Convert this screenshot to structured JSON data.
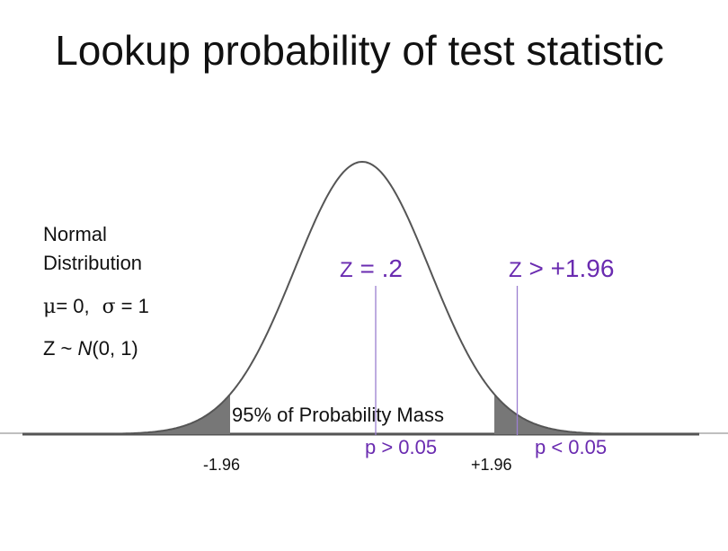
{
  "title": "Lookup probability of test statistic",
  "left_panel": {
    "line1": "Normal",
    "line2": "Distribution",
    "params_mu": "= 0,",
    "params_sigma": "= 1",
    "mu_symbol": "μ",
    "sigma_symbol": "σ",
    "dist_prefix": "Z ~ ",
    "dist_N": "N",
    "dist_suffix": "(0, 1)"
  },
  "annotations": {
    "z_small_Z": "Z",
    "z_small_rest": " = .2",
    "z_large_Z": "Z",
    "z_large_rest": " > +1.96",
    "mass_label": "95% of Probability Mass",
    "p_greater": "p > 0.05",
    "p_less": "p < 0.05",
    "tick_neg": "-1.96",
    "tick_pos": "+1.96"
  },
  "colors": {
    "curve": "#555555",
    "tail_fill": "#777777",
    "axis": "#888888",
    "accent": "#6a2bb0",
    "marker_line": "#9b7fd0",
    "text": "#111111"
  },
  "chart_data": {
    "type": "line",
    "distribution": "standard normal",
    "mu": 0,
    "sigma": 1,
    "x_range": [
      -4,
      4
    ],
    "shaded_tails": [
      [
        -4,
        -1.96
      ],
      [
        1.96,
        4
      ]
    ],
    "markers": [
      0.2,
      2.3
    ],
    "ticks": [
      -1.96,
      1.96
    ]
  }
}
